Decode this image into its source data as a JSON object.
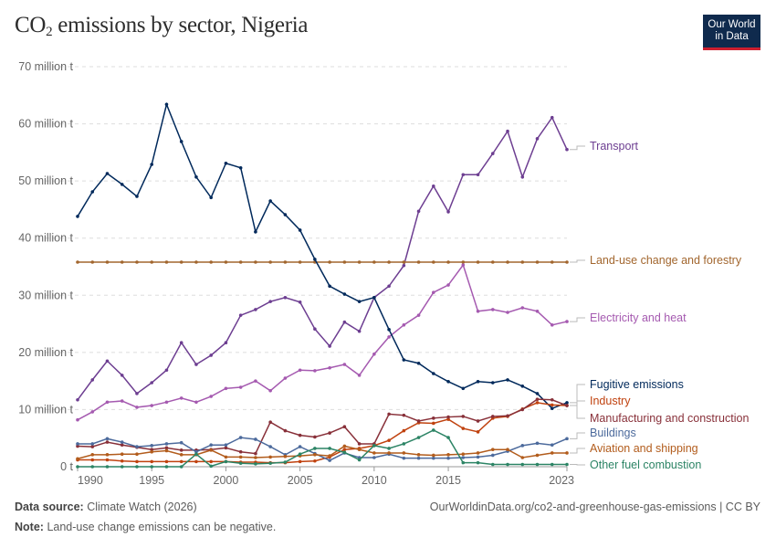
{
  "title": {
    "prefix": "CO",
    "sub": "2",
    "suffix": " emissions by sector, Nigeria"
  },
  "logo": {
    "line1": "Our World",
    "line2": "in Data"
  },
  "footer": {
    "source_label": "Data source:",
    "source": "Climate Watch (2026)",
    "url": "OurWorldinData.org/co2-and-greenhouse-gas-emissions | CC BY",
    "note_label": "Note:",
    "note": "Land-use change emissions can be negative."
  },
  "chart_data": {
    "type": "line",
    "title": "CO₂ emissions by sector, Nigeria",
    "ylim": [
      0,
      70
    ],
    "xlim": [
      1990,
      2023
    ],
    "grid": "horizontal dashed",
    "legend": "right, inline labels",
    "y_ticks": [
      {
        "value": 0,
        "label": "0 t"
      },
      {
        "value": 10,
        "label": "10 million t"
      },
      {
        "value": 20,
        "label": "20 million t"
      },
      {
        "value": 30,
        "label": "30 million t"
      },
      {
        "value": 40,
        "label": "40 million t"
      },
      {
        "value": 50,
        "label": "50 million t"
      },
      {
        "value": 60,
        "label": "60 million t"
      },
      {
        "value": 70,
        "label": "70 million t"
      }
    ],
    "x_ticks": [
      1990,
      1995,
      2000,
      2005,
      2010,
      2015,
      2023
    ],
    "x": [
      1990,
      1991,
      1992,
      1993,
      1994,
      1995,
      1996,
      1997,
      1998,
      1999,
      2000,
      2001,
      2002,
      2003,
      2004,
      2005,
      2006,
      2007,
      2008,
      2009,
      2010,
      2011,
      2012,
      2013,
      2014,
      2015,
      2016,
      2017,
      2018,
      2019,
      2020,
      2021,
      2022,
      2023
    ],
    "series": [
      {
        "name": "Transport",
        "color": "#6d3e91",
        "values": [
          11.7,
          15.2,
          18.5,
          16.0,
          12.8,
          14.7,
          16.9,
          21.7,
          17.9,
          19.5,
          21.7,
          26.5,
          27.5,
          28.9,
          29.6,
          28.8,
          24.1,
          21.1,
          25.3,
          23.7,
          29.6,
          31.6,
          35.2,
          44.7,
          49.1,
          44.6,
          51.1,
          51.1,
          54.8,
          58.7,
          50.7,
          57.4,
          61.1,
          55.5
        ]
      },
      {
        "name": "Land-use change and forestry",
        "color": "#a2662e",
        "values": [
          35.8,
          35.8,
          35.8,
          35.8,
          35.8,
          35.8,
          35.8,
          35.8,
          35.8,
          35.8,
          35.8,
          35.8,
          35.8,
          35.8,
          35.8,
          35.8,
          35.8,
          35.8,
          35.8,
          35.8,
          35.8,
          35.8,
          35.8,
          35.8,
          35.8,
          35.8,
          35.8,
          35.8,
          35.8,
          35.8,
          35.8,
          35.8,
          35.8,
          35.8
        ]
      },
      {
        "name": "Electricity and heat",
        "color": "#a55ab0",
        "values": [
          8.2,
          9.6,
          11.3,
          11.5,
          10.4,
          10.7,
          11.3,
          12.0,
          11.3,
          12.3,
          13.7,
          13.9,
          15.0,
          13.3,
          15.5,
          16.9,
          16.8,
          17.3,
          17.9,
          16.0,
          19.7,
          22.7,
          24.8,
          26.5,
          30.5,
          31.8,
          35.3,
          27.2,
          27.5,
          27.0,
          27.8,
          27.2,
          24.8,
          25.4
        ]
      },
      {
        "name": "Fugitive emissions",
        "color": "#00295b",
        "values": [
          43.8,
          48.1,
          51.3,
          49.4,
          47.3,
          52.9,
          63.4,
          56.9,
          50.7,
          47.1,
          53.1,
          52.3,
          41.1,
          46.5,
          44.1,
          41.4,
          36.3,
          31.6,
          30.2,
          28.9,
          29.6,
          24.0,
          18.7,
          18.1,
          16.3,
          14.9,
          13.7,
          14.9,
          14.7,
          15.2,
          14.1,
          12.8,
          10.2,
          11.2
        ]
      },
      {
        "name": "Industry",
        "color": "#c0420f",
        "values": [
          1.2,
          1.2,
          1.2,
          1.0,
          0.9,
          0.9,
          0.9,
          0.9,
          0.9,
          0.9,
          0.9,
          0.8,
          0.8,
          0.7,
          0.7,
          0.9,
          1.0,
          1.7,
          3.0,
          3.2,
          3.7,
          4.6,
          6.3,
          7.7,
          7.6,
          8.3,
          6.7,
          6.1,
          8.5,
          8.8,
          10.1,
          11.2,
          10.8,
          10.7
        ]
      },
      {
        "name": "Manufacturing and construction",
        "color": "#883039",
        "values": [
          3.6,
          3.5,
          4.3,
          3.8,
          3.4,
          3.0,
          3.3,
          2.9,
          2.9,
          3.0,
          3.3,
          2.6,
          2.3,
          7.8,
          6.3,
          5.5,
          5.2,
          5.9,
          7.0,
          4.0,
          4.0,
          9.2,
          9.0,
          8.0,
          8.5,
          8.7,
          8.8,
          8.0,
          8.8,
          8.9,
          10.0,
          11.8,
          11.7,
          10.7
        ]
      },
      {
        "name": "Buildings",
        "color": "#4c6a9c",
        "values": [
          4.0,
          4.0,
          4.9,
          4.3,
          3.5,
          3.7,
          4.0,
          4.2,
          2.6,
          3.8,
          3.8,
          5.1,
          4.8,
          3.5,
          2.1,
          3.5,
          2.3,
          1.1,
          2.4,
          1.6,
          1.6,
          2.2,
          1.5,
          1.5,
          1.5,
          1.5,
          1.6,
          1.7,
          2.0,
          2.7,
          3.7,
          4.1,
          3.8,
          4.9
        ]
      },
      {
        "name": "Aviation and shipping",
        "color": "#b25c1c",
        "values": [
          1.4,
          2.1,
          2.1,
          2.2,
          2.2,
          2.6,
          2.8,
          2.1,
          2.1,
          2.9,
          1.7,
          1.7,
          1.6,
          1.7,
          1.8,
          1.9,
          2.1,
          1.9,
          3.6,
          3.0,
          2.4,
          2.4,
          2.4,
          2.1,
          2.0,
          2.1,
          2.2,
          2.4,
          3.0,
          3.0,
          1.6,
          2.0,
          2.4,
          2.4
        ]
      },
      {
        "name": "Other fuel combustion",
        "color": "#2c8465",
        "values": [
          0,
          0,
          0,
          0,
          0,
          0,
          0,
          0,
          2.2,
          0.1,
          0.9,
          0.6,
          0.5,
          0.6,
          0.8,
          2.2,
          3.2,
          3.2,
          2.5,
          1.2,
          3.7,
          3.2,
          4.0,
          5.1,
          6.4,
          5.1,
          0.7,
          0.7,
          0.4,
          0.4,
          0.4,
          0.4,
          0.4,
          0.4
        ]
      }
    ],
    "label_positions_order": [
      "Transport",
      "Land-use change and forestry",
      "Electricity and heat",
      "Fugitive emissions",
      "Industry",
      "Manufacturing and construction",
      "Buildings",
      "Aviation and shipping",
      "Other fuel combustion"
    ]
  }
}
